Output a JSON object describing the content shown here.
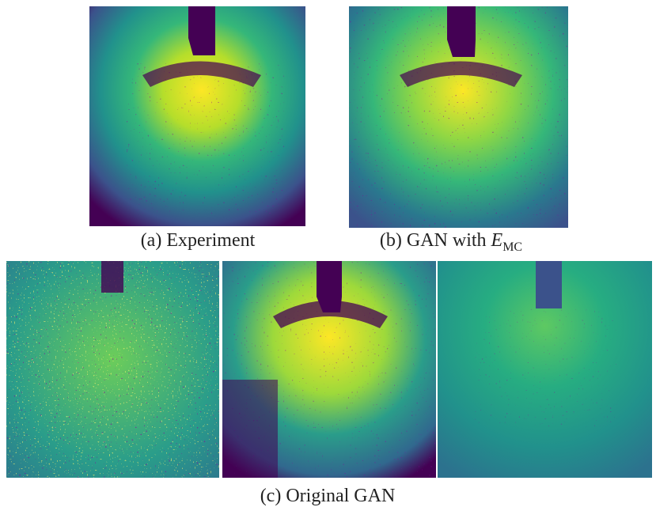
{
  "figure": {
    "panels": [
      {
        "caption": "(a) Experiment"
      },
      {
        "caption": "(b) GAN with",
        "symbol": "E",
        "subscript": "MC"
      },
      {
        "caption": "(c) Original GAN"
      }
    ]
  }
}
